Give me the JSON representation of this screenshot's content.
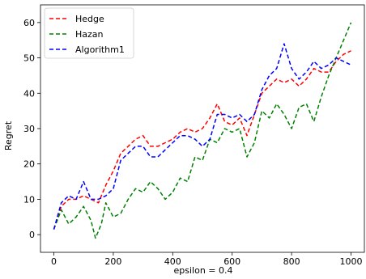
{
  "chart_data": {
    "type": "line",
    "title": "",
    "xlabel": "epsilon = 0.4",
    "ylabel": "Regret",
    "xlim": [
      -45,
      1045
    ],
    "ylim": [
      -5,
      65
    ],
    "xticks": [
      0,
      200,
      400,
      600,
      800,
      1000
    ],
    "yticks": [
      0,
      10,
      20,
      30,
      40,
      50,
      60
    ],
    "grid": false,
    "legend_position": "top-left",
    "line_style": "dashed",
    "series": [
      {
        "name": "Hedge",
        "color": "#ff0000",
        "x": [
          0,
          25,
          50,
          75,
          100,
          125,
          150,
          175,
          200,
          225,
          250,
          275,
          300,
          325,
          350,
          375,
          400,
          425,
          450,
          475,
          500,
          525,
          550,
          575,
          600,
          625,
          650,
          675,
          700,
          725,
          750,
          775,
          800,
          825,
          850,
          875,
          900,
          925,
          950,
          975,
          1000
        ],
        "y": [
          1.5,
          8,
          10,
          10,
          11,
          10,
          9,
          14,
          18,
          23,
          25,
          27,
          28,
          25,
          25,
          26,
          27,
          29,
          30,
          29,
          30,
          33,
          37,
          32,
          31,
          33,
          28,
          34,
          40,
          42,
          44,
          43,
          44,
          42,
          44,
          47,
          46,
          46,
          49,
          51,
          52
        ]
      },
      {
        "name": "Hazan",
        "color": "#008000",
        "x": [
          0,
          25,
          50,
          75,
          100,
          125,
          140,
          160,
          175,
          200,
          225,
          250,
          275,
          300,
          325,
          350,
          375,
          400,
          425,
          450,
          475,
          500,
          525,
          550,
          575,
          600,
          625,
          650,
          675,
          700,
          725,
          750,
          775,
          800,
          825,
          850,
          875,
          900,
          925,
          950,
          975,
          1000
        ],
        "y": [
          1.5,
          7,
          3,
          5,
          8,
          4,
          -1,
          3,
          9,
          5,
          6,
          10,
          13,
          12,
          15,
          13,
          10,
          12,
          16,
          15,
          22,
          21,
          27,
          26,
          30,
          29,
          30,
          22,
          26,
          35,
          33,
          37,
          34,
          30,
          36,
          37,
          32,
          39,
          45,
          50,
          55,
          60
        ]
      },
      {
        "name": "Algorithm1",
        "color": "#0000ff",
        "x": [
          0,
          25,
          50,
          75,
          100,
          125,
          150,
          175,
          200,
          225,
          250,
          275,
          300,
          325,
          350,
          375,
          400,
          425,
          450,
          475,
          500,
          525,
          550,
          575,
          600,
          625,
          650,
          675,
          700,
          725,
          750,
          775,
          800,
          825,
          850,
          875,
          900,
          925,
          950,
          975,
          1000
        ],
        "y": [
          1.5,
          9,
          11,
          10,
          15,
          10,
          10,
          11,
          13,
          21,
          23,
          25,
          25,
          22,
          22,
          24,
          26,
          28,
          28,
          27,
          25,
          27,
          34,
          34,
          33,
          34,
          32,
          34,
          41,
          45,
          47,
          54,
          47,
          44,
          46,
          49,
          47,
          48,
          50,
          49,
          48
        ]
      }
    ]
  }
}
